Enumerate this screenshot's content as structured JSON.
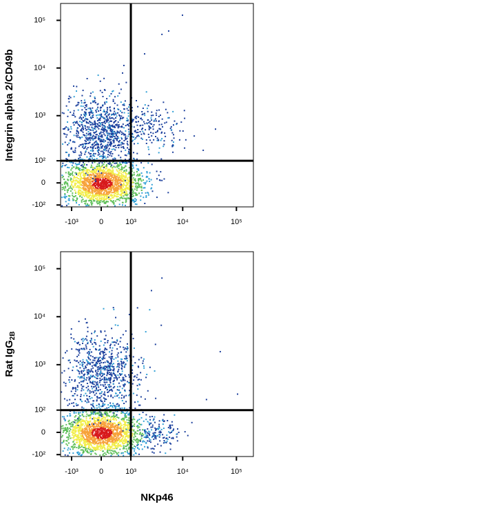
{
  "chart_data": [
    {
      "type": "scatter",
      "y_label": "Integrin alpha 2/CD49b",
      "x_transform": {
        "type": "arcsinh",
        "cofactor": 610
      },
      "y_transform": {
        "type": "arcsinh",
        "cofactor": 78
      },
      "xlim": [
        -1685,
        206800
      ],
      "ylim": [
        -112,
        226000
      ],
      "xticks": [
        {
          "value": -1000,
          "label": "-10³"
        },
        0,
        {
          "value": 1000,
          "label": "10³"
        },
        {
          "value": 10000,
          "label": "10⁴"
        },
        {
          "value": 100000,
          "label": "10⁵"
        }
      ],
      "yticks": [
        {
          "value": -100,
          "label": "-10²"
        },
        0,
        {
          "value": 100,
          "label": "10²"
        },
        {
          "value": 1000,
          "label": "10³"
        },
        {
          "value": 10000,
          "label": "10⁴"
        },
        {
          "value": 100000,
          "label": "10⁵"
        }
      ],
      "gate": {
        "x": 1000,
        "y": 100
      },
      "colors": [
        "#d7191c",
        "#f7a23b",
        "#f2ee4a",
        "#5fbf5a",
        "#2f9fd6",
        "#1b3f9c"
      ],
      "populations": [
        {
          "x": 0,
          "y": 0,
          "sx": 0.9,
          "sy": 0.55,
          "n": 1800,
          "heat": 1
        },
        {
          "x": 0,
          "y": 500,
          "sx": 0.8,
          "sy": 0.9,
          "n": 900,
          "heat": 0
        },
        {
          "x": 3000,
          "y": 560,
          "sx": 0.55,
          "sy": 0.5,
          "n": 140,
          "heat": 0
        }
      ],
      "x": [
        5470,
        4090,
        1910,
        690,
        40800,
        24100,
        9900
      ],
      "y": [
        59700,
        50700,
        19800,
        11300,
        520,
        180,
        128000
      ]
    },
    {
      "type": "scatter",
      "y_label": "Rat IgG",
      "y_label_subscript": "2B",
      "x_label": "NKp46",
      "x_transform": {
        "type": "arcsinh",
        "cofactor": 610
      },
      "y_transform": {
        "type": "arcsinh",
        "cofactor": 78
      },
      "xlim": [
        -1685,
        206800
      ],
      "ylim": [
        -112,
        226000
      ],
      "xticks": [
        {
          "value": -1000,
          "label": "-10³"
        },
        0,
        {
          "value": 1000,
          "label": "10³"
        },
        {
          "value": 10000,
          "label": "10⁴"
        },
        {
          "value": 100000,
          "label": "10⁵"
        }
      ],
      "yticks": [
        {
          "value": -100,
          "label": "-10²"
        },
        0,
        {
          "value": 100,
          "label": "10²"
        },
        {
          "value": 1000,
          "label": "10³"
        },
        {
          "value": 10000,
          "label": "10⁴"
        },
        {
          "value": 100000,
          "label": "10⁵"
        }
      ],
      "gate": {
        "x": 1000,
        "y": 100
      },
      "colors": [
        "#d7191c",
        "#f7a23b",
        "#f2ee4a",
        "#5fbf5a",
        "#2f9fd6",
        "#1b3f9c"
      ],
      "populations": [
        {
          "x": 0,
          "y": 0,
          "sx": 0.9,
          "sy": 0.55,
          "n": 1800,
          "heat": 1
        },
        {
          "x": 0,
          "y": 700,
          "sx": 0.8,
          "sy": 1.0,
          "n": 800,
          "heat": 0
        },
        {
          "x": 3500,
          "y": 0,
          "sx": 0.45,
          "sy": 0.35,
          "n": 120,
          "heat": 0
        }
      ],
      "x": [
        2590,
        4090,
        1380,
        50000,
        105000,
        27700
      ],
      "y": [
        35000,
        63800,
        15300,
        1870,
        238,
        180
      ]
    }
  ]
}
